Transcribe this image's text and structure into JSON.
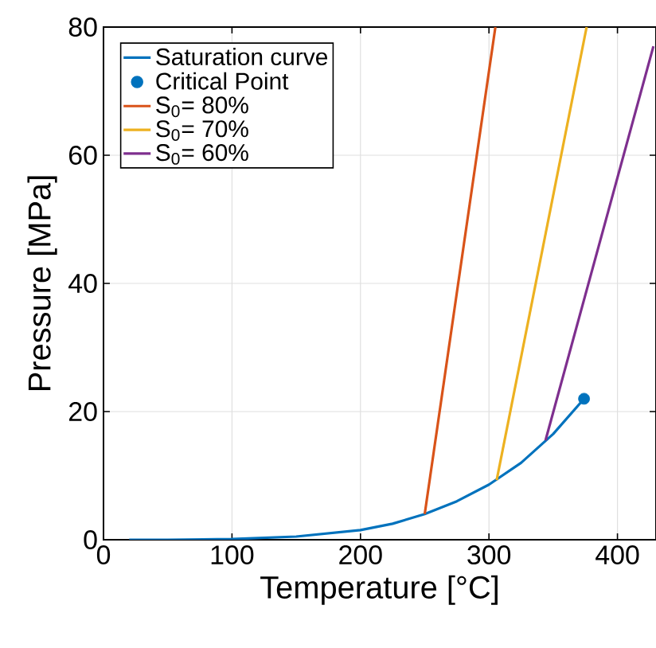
{
  "chart_data": {
    "type": "line",
    "xlabel": "Temperature [°C]",
    "ylabel": "Pressure [MPa]",
    "xlim": [
      0,
      430
    ],
    "ylim": [
      0,
      80
    ],
    "xticks": [
      0,
      100,
      200,
      300,
      400
    ],
    "yticks": [
      0,
      20,
      40,
      60,
      80
    ],
    "grid": true,
    "legend": "top left",
    "series": [
      {
        "name": "Saturation curve",
        "color": "#0072bd",
        "x": [
          20,
          50,
          100,
          150,
          200,
          225,
          250,
          275,
          300,
          325,
          350,
          374
        ],
        "values": [
          0,
          0,
          0.1,
          0.5,
          1.5,
          2.5,
          4,
          6,
          8.6,
          12,
          16.5,
          22
        ]
      },
      {
        "name": "Critical Point",
        "type": "scatter",
        "marker": "circle",
        "color": "#0072bd",
        "x": [
          374
        ],
        "values": [
          22
        ]
      },
      {
        "name": "S$_{0}$= 80%",
        "color": "#d95319",
        "x": [
          250,
          305
        ],
        "values": [
          4.0,
          80
        ]
      },
      {
        "name": "S$_{0}$= 70%",
        "color": "#edb120",
        "x": [
          306,
          376
        ],
        "values": [
          9.3,
          80
        ]
      },
      {
        "name": "S$_{0}$= 60%",
        "color": "#7e2f8e",
        "x": [
          344,
          428
        ],
        "values": [
          15.5,
          77
        ]
      }
    ]
  }
}
